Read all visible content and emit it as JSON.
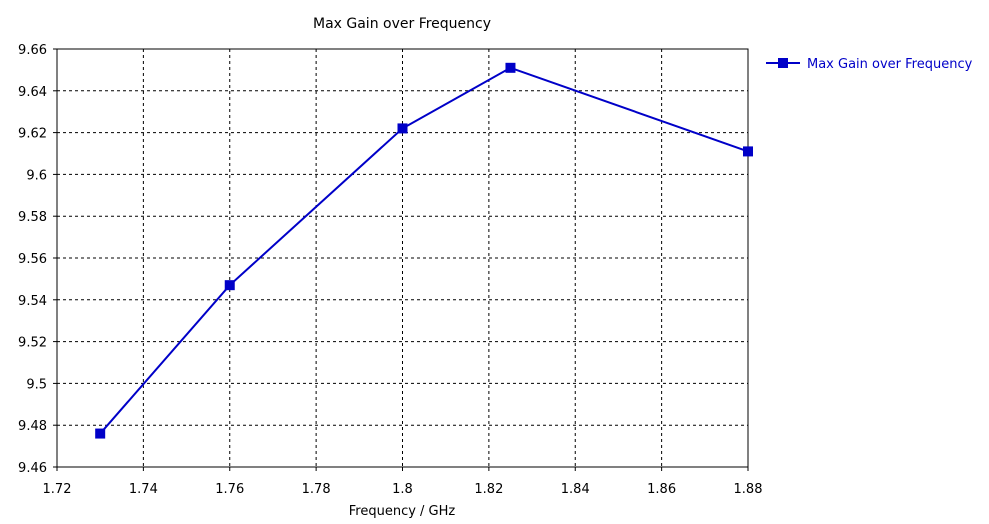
{
  "chart_data": {
    "type": "line",
    "title": "Max Gain over Frequency",
    "xlabel": "Frequency / GHz",
    "ylabel": "",
    "xlim": [
      1.72,
      1.88
    ],
    "ylim": [
      9.46,
      9.66
    ],
    "x_ticks": [
      "1.72",
      "1.74",
      "1.76",
      "1.78",
      "1.8",
      "1.82",
      "1.84",
      "1.86",
      "1.88"
    ],
    "y_ticks": [
      "9.66",
      "9.64",
      "9.62",
      "9.6",
      "9.58",
      "9.56",
      "9.54",
      "9.52",
      "9.5",
      "9.48",
      "9.46"
    ],
    "grid": true,
    "legend_position": "top-right",
    "series": [
      {
        "name": "Max Gain over Frequency",
        "color": "#0000c8",
        "x": [
          1.73,
          1.76,
          1.8,
          1.825,
          1.88
        ],
        "y": [
          9.476,
          9.547,
          9.622,
          9.651,
          9.611
        ]
      }
    ]
  }
}
